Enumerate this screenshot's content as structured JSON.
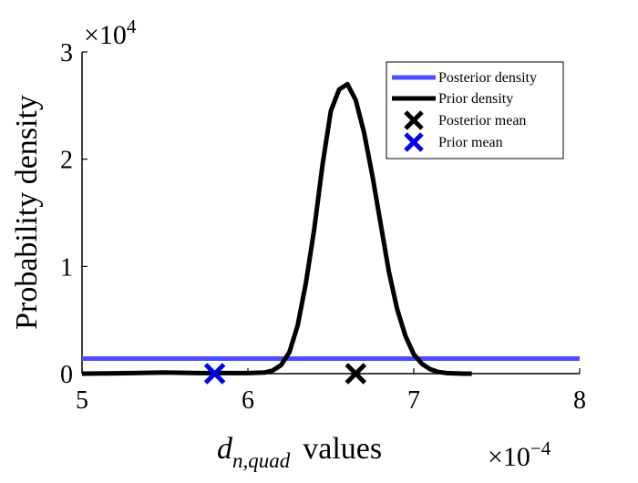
{
  "chart_data": {
    "type": "line",
    "title": "",
    "xlabel": {
      "main": "d",
      "subscript": "n,quad",
      "suffix": "values"
    },
    "ylabel": "Probability density",
    "x_multiplier": {
      "base": "×10",
      "exp": "−4"
    },
    "y_multiplier": {
      "base": "×10",
      "exp": "4"
    },
    "xlim": [
      5,
      8
    ],
    "ylim": [
      0,
      3
    ],
    "x_ticks": [
      "5",
      "6",
      "7",
      "8"
    ],
    "y_ticks": [
      "0",
      "1",
      "2",
      "3"
    ],
    "grid": false,
    "legend_position": "top-right",
    "legend": [
      {
        "label": "Posterior density",
        "kind": "line",
        "color": "#4d4dff"
      },
      {
        "label": "Prior density",
        "kind": "line",
        "color": "#000000"
      },
      {
        "label": "Posterior mean",
        "kind": "marker",
        "color": "#000000"
      },
      {
        "label": "Prior mean",
        "kind": "marker",
        "color": "#0000ee"
      }
    ],
    "series": [
      {
        "name": "Posterior density",
        "color": "#4d4dff",
        "x": [
          5.0,
          8.0
        ],
        "y": [
          0.14,
          0.14
        ]
      },
      {
        "name": "Prior density",
        "color": "#000000",
        "x": [
          5.0,
          5.3,
          5.5,
          5.7,
          5.9,
          6.0,
          6.1,
          6.15,
          6.2,
          6.25,
          6.3,
          6.35,
          6.4,
          6.45,
          6.5,
          6.55,
          6.6,
          6.65,
          6.7,
          6.75,
          6.8,
          6.85,
          6.9,
          6.95,
          7.0,
          7.05,
          7.1,
          7.15,
          7.2,
          7.3,
          7.35
        ],
        "y": [
          0.0,
          0.005,
          0.01,
          0.005,
          0.005,
          0.005,
          0.01,
          0.03,
          0.08,
          0.2,
          0.45,
          0.85,
          1.35,
          1.95,
          2.45,
          2.65,
          2.7,
          2.55,
          2.25,
          1.85,
          1.4,
          0.95,
          0.6,
          0.35,
          0.18,
          0.09,
          0.04,
          0.015,
          0.005,
          0.0,
          0.0
        ]
      }
    ],
    "points": [
      {
        "name": "Posterior mean",
        "x": 6.65,
        "y": 0.0,
        "color": "#000000"
      },
      {
        "name": "Prior mean",
        "x": 5.8,
        "y": 0.0,
        "color": "#0000ee"
      }
    ]
  }
}
